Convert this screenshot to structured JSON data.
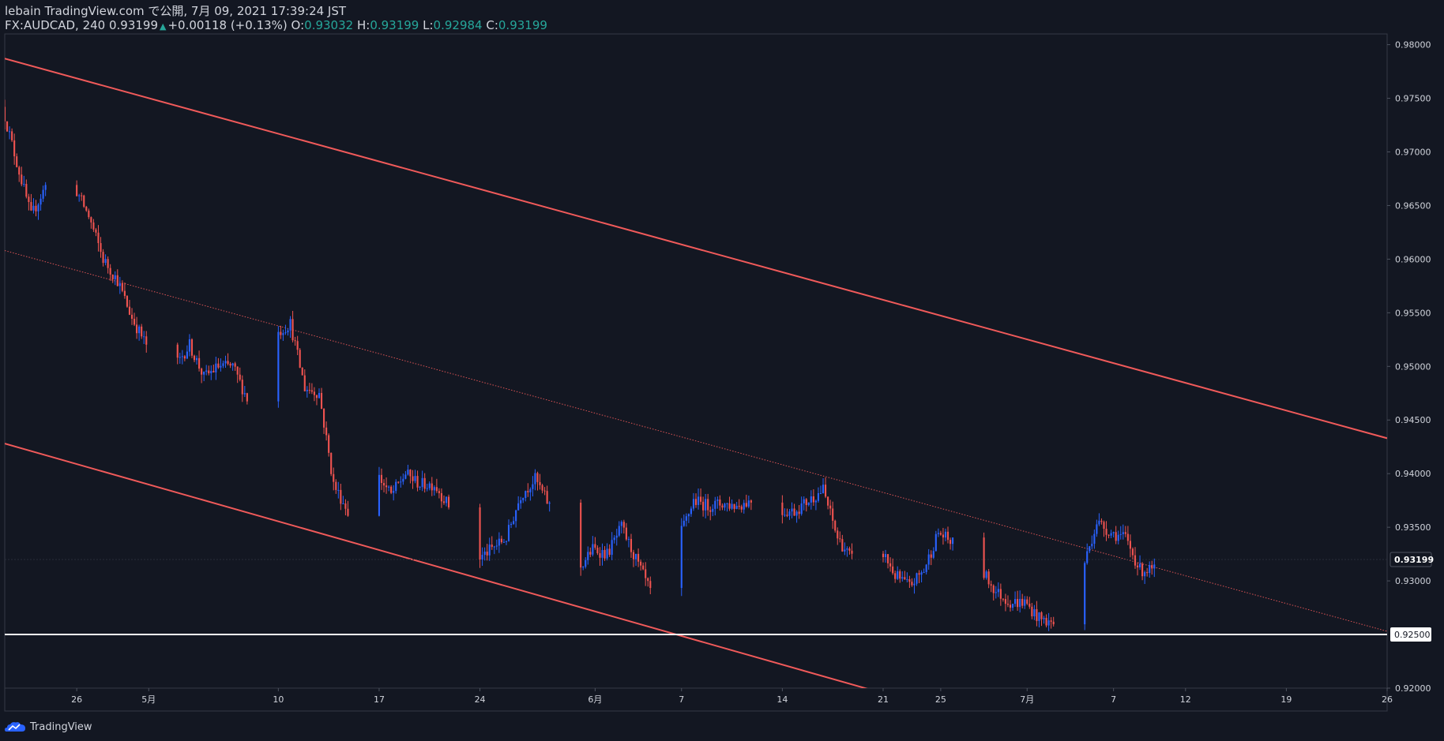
{
  "header": {
    "line1": "lebain TradingView.com で公開, 7月 09, 2021 17:39:24 JST",
    "symbol": "FX:AUDCAD, 240 0.93199",
    "arrow": "▲",
    "change": "+0.00118 (+0.13%)",
    "o_label": "O:",
    "o_value": "0.93032",
    "h_label": "H:",
    "h_value": "0.93199",
    "l_label": "L:",
    "l_value": "0.92984",
    "c_label": "C:",
    "c_value": "0.93199"
  },
  "footer": {
    "brand": "TradingView",
    "logo_icon": "tradingview-cloud-icon"
  },
  "colors": {
    "background": "#131722",
    "bull": "#2962ff",
    "bear": "#ef5350",
    "channel": "#f05a5a",
    "support": "#ffffff",
    "axis_text": "#d1d4dc",
    "up_text": "#26a69a"
  },
  "chart_data": {
    "type": "candlestick",
    "symbol": "FX:AUDCAD",
    "interval": "240",
    "xlim": [
      "2021-04-21",
      "2021-07-26"
    ],
    "ylim": [
      0.92,
      0.981
    ],
    "y_ticks": [
      "0.98000",
      "0.97500",
      "0.97000",
      "0.96500",
      "0.96000",
      "0.95500",
      "0.95000",
      "0.94500",
      "0.94000",
      "0.93500",
      "0.93000",
      "0.92000"
    ],
    "x_ticks": [
      {
        "date": "2021-04-26",
        "label": "26"
      },
      {
        "date": "2021-05-01",
        "label": "5月"
      },
      {
        "date": "2021-05-10",
        "label": "10"
      },
      {
        "date": "2021-05-17",
        "label": "17"
      },
      {
        "date": "2021-05-24",
        "label": "24"
      },
      {
        "date": "2021-06-01",
        "label": "6月"
      },
      {
        "date": "2021-06-07",
        "label": "7"
      },
      {
        "date": "2021-06-14",
        "label": "14"
      },
      {
        "date": "2021-06-21",
        "label": "21"
      },
      {
        "date": "2021-06-25",
        "label": "25"
      },
      {
        "date": "2021-07-01",
        "label": "7月"
      },
      {
        "date": "2021-07-07",
        "label": "7"
      },
      {
        "date": "2021-07-12",
        "label": "12"
      },
      {
        "date": "2021-07-19",
        "label": "19"
      },
      {
        "date": "2021-07-26",
        "label": "26"
      }
    ],
    "last_price": {
      "value": 0.93199,
      "label": "0.93199"
    },
    "support_line": {
      "value": 0.925,
      "label": "0.92500"
    },
    "channel": {
      "upper": [
        [
          "2021-04-21",
          0.9787
        ],
        [
          "2021-07-26",
          0.9433
        ]
      ],
      "middle": [
        [
          "2021-04-21",
          0.9608
        ],
        [
          "2021-07-26",
          0.9253
        ]
      ],
      "lower": [
        [
          "2021-04-21",
          0.9428
        ],
        [
          "2021-06-20",
          0.9199
        ]
      ]
    },
    "price_path": [
      [
        "2021-04-21",
        0.9742
      ],
      [
        "2021-04-22",
        0.969
      ],
      [
        "2021-04-23",
        0.964
      ],
      [
        "2021-04-24",
        0.9668
      ],
      [
        "2021-04-25",
        0.9693
      ],
      [
        "2021-04-26",
        0.9668
      ],
      [
        "2021-04-27",
        0.964
      ],
      [
        "2021-04-28",
        0.96
      ],
      [
        "2021-04-29",
        0.958
      ],
      [
        "2021-04-30",
        0.9545
      ],
      [
        "2021-05-01",
        0.952
      ],
      [
        "2021-05-02",
        0.9478
      ],
      [
        "2021-05-03",
        0.95
      ],
      [
        "2021-05-04",
        0.952
      ],
      [
        "2021-05-05",
        0.949
      ],
      [
        "2021-05-06",
        0.95
      ],
      [
        "2021-05-07",
        0.95
      ],
      [
        "2021-05-08",
        0.947
      ],
      [
        "2021-05-09",
        0.948
      ],
      [
        "2021-05-10",
        0.953
      ],
      [
        "2021-05-11",
        0.954
      ],
      [
        "2021-05-12",
        0.948
      ],
      [
        "2021-05-13",
        0.9475
      ],
      [
        "2021-05-14",
        0.939
      ],
      [
        "2021-05-15",
        0.9365
      ],
      [
        "2021-05-16",
        0.9395
      ],
      [
        "2021-05-17",
        0.94
      ],
      [
        "2021-05-18",
        0.938
      ],
      [
        "2021-05-19",
        0.94
      ],
      [
        "2021-05-20",
        0.939
      ],
      [
        "2021-05-21",
        0.939
      ],
      [
        "2021-05-22",
        0.937
      ],
      [
        "2021-05-23",
        0.933
      ],
      [
        "2021-05-24",
        0.932
      ],
      [
        "2021-05-25",
        0.933
      ],
      [
        "2021-05-26",
        0.934
      ],
      [
        "2021-05-27",
        0.938
      ],
      [
        "2021-05-28",
        0.9395
      ],
      [
        "2021-05-29",
        0.937
      ],
      [
        "2021-05-30",
        0.933
      ],
      [
        "2021-05-31",
        0.931
      ],
      [
        "2021-06-01",
        0.933
      ],
      [
        "2021-06-02",
        0.9325
      ],
      [
        "2021-06-03",
        0.935
      ],
      [
        "2021-06-04",
        0.932
      ],
      [
        "2021-06-05",
        0.929
      ],
      [
        "2021-06-06",
        0.928
      ],
      [
        "2021-06-07",
        0.934
      ],
      [
        "2021-06-08",
        0.9375
      ],
      [
        "2021-06-09",
        0.937
      ],
      [
        "2021-06-10",
        0.9372
      ],
      [
        "2021-06-11",
        0.937
      ],
      [
        "2021-06-12",
        0.9375
      ],
      [
        "2021-06-13",
        0.937
      ],
      [
        "2021-06-14",
        0.9365
      ],
      [
        "2021-06-15",
        0.9365
      ],
      [
        "2021-06-16",
        0.9375
      ],
      [
        "2021-06-17",
        0.9385
      ],
      [
        "2021-06-18",
        0.934
      ],
      [
        "2021-06-19",
        0.932
      ],
      [
        "2021-06-20",
        0.931
      ],
      [
        "2021-06-21",
        0.933
      ],
      [
        "2021-06-22",
        0.9305
      ],
      [
        "2021-06-23",
        0.9295
      ],
      [
        "2021-06-24",
        0.931
      ],
      [
        "2021-06-25",
        0.9345
      ],
      [
        "2021-06-26",
        0.9335
      ],
      [
        "2021-06-27",
        0.932
      ],
      [
        "2021-06-28",
        0.931
      ],
      [
        "2021-06-29",
        0.929
      ],
      [
        "2021-06-30",
        0.928
      ],
      [
        "2021-07-01",
        0.928
      ],
      [
        "2021-07-02",
        0.9265
      ],
      [
        "2021-07-03",
        0.926
      ],
      [
        "2021-07-04",
        0.929
      ],
      [
        "2021-07-05",
        0.931
      ],
      [
        "2021-07-06",
        0.9355
      ],
      [
        "2021-07-07",
        0.9345
      ],
      [
        "2021-07-08",
        0.934
      ],
      [
        "2021-07-09",
        0.931
      ],
      [
        "2021-07-10",
        0.931
      ]
    ]
  }
}
